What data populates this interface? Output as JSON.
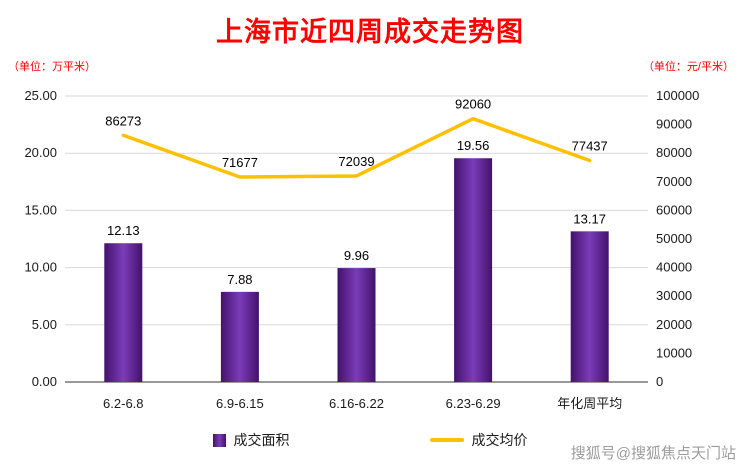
{
  "title": "上海市近四周成交走势图",
  "left_unit": "（单位：万平米）",
  "right_unit": "（单位：元/平米）",
  "legend": {
    "area_label": "成交面积",
    "price_label": "成交均价"
  },
  "watermark": "搜狐号@搜狐焦点天门站",
  "colors": {
    "title": "#ff0000",
    "unit": "#ff0000",
    "bar_edge": "#43126b",
    "bar_center": "#7b3cb8",
    "line": "#ffc000",
    "grid": "#d9d9d9",
    "axis": "#333333",
    "tick": "#1a1a1a",
    "label": "#000000",
    "watermark": "#8b8b8b"
  },
  "chart_data": {
    "type": "combo-bar-line",
    "title": "上海市近四周成交走势图",
    "categories": [
      "6.2-6.8",
      "6.9-6.15",
      "6.16-6.22",
      "6.23-6.29",
      "年化周平均"
    ],
    "series": [
      {
        "name": "成交面积",
        "type": "bar",
        "axis": "left",
        "unit": "万平米",
        "values": [
          12.13,
          7.88,
          9.96,
          19.56,
          13.17
        ]
      },
      {
        "name": "成交均价",
        "type": "line",
        "axis": "right",
        "unit": "元/平米",
        "values": [
          86273,
          71677,
          72039,
          92060,
          77437
        ]
      }
    ],
    "left_axis": {
      "min": 0,
      "max": 25,
      "step": 5,
      "format": "2dp"
    },
    "right_axis": {
      "min": 0,
      "max": 100000,
      "step": 10000,
      "format": "int"
    },
    "grid": true,
    "legend_position": "bottom"
  }
}
